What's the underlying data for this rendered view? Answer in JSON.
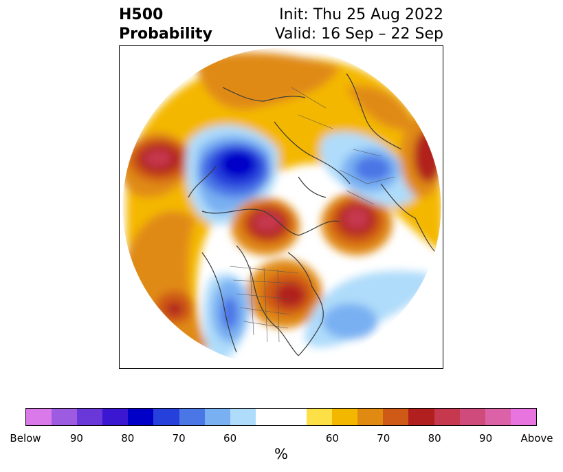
{
  "title": {
    "left_line1": "H500",
    "left_line2": "Probability",
    "right_line1": "Init: Thu 25 Aug 2022",
    "right_line2": "Valid: 16 Sep – 22 Sep"
  },
  "colorbar": {
    "units": "%",
    "colors": [
      "#d979ea",
      "#9c5be0",
      "#6a37d9",
      "#3b17d2",
      "#0000c8",
      "#2641db",
      "#4b76e6",
      "#79b0f2",
      "#afdcfa",
      "#ffffff",
      "#ffffff",
      "#fde046",
      "#f4b700",
      "#e08a12",
      "#cf5a17",
      "#b1201e",
      "#c6384e",
      "#cf4b7c",
      "#dc62a8",
      "#e874e0"
    ],
    "ticks": [
      "Below",
      "90",
      "80",
      "70",
      "60",
      "60",
      "70",
      "80",
      "90",
      "Above"
    ]
  },
  "map": {
    "projection": "north-polar-stereographic",
    "field": "500 hPa geopotential height probability",
    "anomalies": [
      {
        "sign": "above",
        "category": "80-90",
        "region": "Northwest Pacific"
      },
      {
        "sign": "below",
        "category": "80-90",
        "region": "Russian Arctic / Siberia"
      },
      {
        "sign": "above",
        "category": "80",
        "region": "Canadian Arctic / Beaufort Sea"
      },
      {
        "sign": "above",
        "category": "80",
        "region": "Scandinavia / Norwegian Sea"
      },
      {
        "sign": "below",
        "category": "70",
        "region": "Northwest Russia / Ural"
      },
      {
        "sign": "above",
        "category": "80",
        "region": "Great Lakes / eastern United States"
      },
      {
        "sign": "below",
        "category": "70",
        "region": "Western United States"
      },
      {
        "sign": "below",
        "category": "60",
        "region": "Subtropical North Atlantic"
      },
      {
        "sign": "above",
        "category": "70",
        "region": "Northern Europe / Russia"
      }
    ]
  }
}
